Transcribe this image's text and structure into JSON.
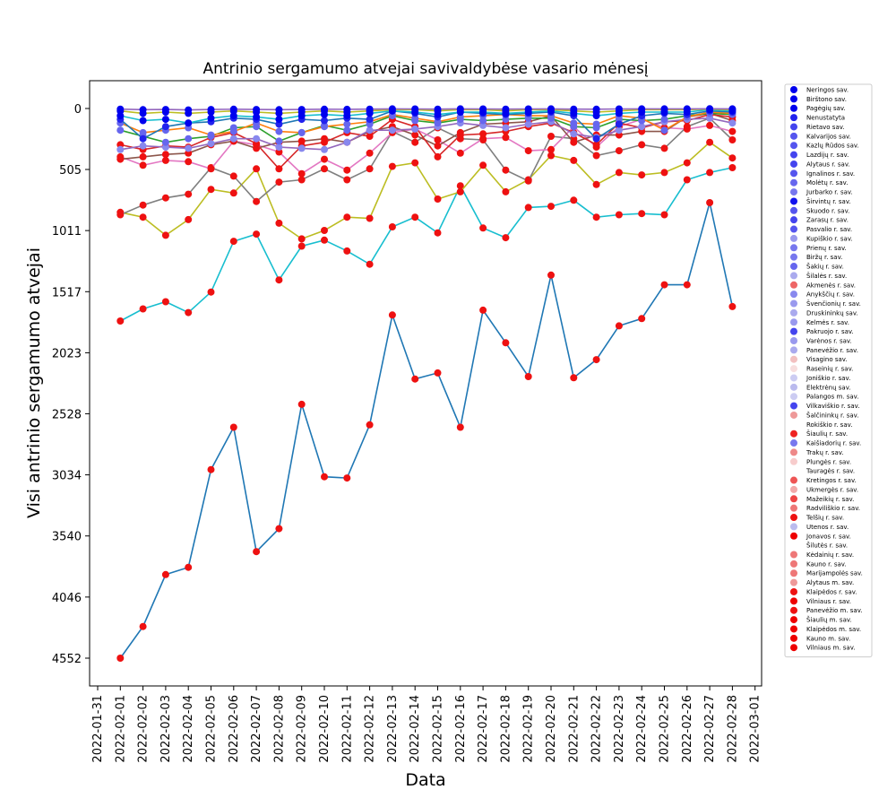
{
  "chart_data": {
    "type": "line",
    "title": "Antrinio sergamumo atvejai savivaldybėse vasario mėnesį",
    "xlabel": "Data",
    "ylabel": "Visi antrinio sergamumo atvejai",
    "y_axis_inverted": true,
    "ylim": [
      0,
      4552
    ],
    "y_ticks": [
      0,
      505,
      1011,
      1517,
      2023,
      2528,
      3034,
      3540,
      4046,
      4552
    ],
    "y_tick_labels": [
      "0",
      "505",
      "1011",
      "1517",
      "2023",
      "2528",
      "3034",
      "3540",
      "4046",
      "4552"
    ],
    "x_tick_labels": [
      "2022-01-31",
      "2022-02-01",
      "2022-02-02",
      "2022-02-03",
      "2022-02-04",
      "2022-02-05",
      "2022-02-06",
      "2022-02-07",
      "2022-02-08",
      "2022-02-09",
      "2022-02-10",
      "2022-02-11",
      "2022-02-12",
      "2022-02-13",
      "2022-02-14",
      "2022-02-15",
      "2022-02-16",
      "2022-02-17",
      "2022-02-18",
      "2022-02-19",
      "2022-02-20",
      "2022-02-21",
      "2022-02-22",
      "2022-02-23",
      "2022-02-24",
      "2022-02-25",
      "2022-02-26",
      "2022-02-27",
      "2022-02-28",
      "2022-03-01"
    ],
    "x_dates": [
      "2022-02-01",
      "2022-02-02",
      "2022-02-03",
      "2022-02-04",
      "2022-02-05",
      "2022-02-06",
      "2022-02-07",
      "2022-02-08",
      "2022-02-09",
      "2022-02-10",
      "2022-02-11",
      "2022-02-12",
      "2022-02-13",
      "2022-02-14",
      "2022-02-15",
      "2022-02-16",
      "2022-02-17",
      "2022-02-18",
      "2022-02-19",
      "2022-02-20",
      "2022-02-21",
      "2022-02-22",
      "2022-02-23",
      "2022-02-24",
      "2022-02-25",
      "2022-02-26",
      "2022-02-27",
      "2022-02-28"
    ],
    "legend_position": "right, outside plot",
    "legend": [
      {
        "name": "Neringos sav.",
        "color": "#0000ee"
      },
      {
        "name": "Birštono sav.",
        "color": "#0000ee"
      },
      {
        "name": "Pagėgių sav.",
        "color": "#0000ee"
      },
      {
        "name": "Nenustatyta",
        "color": "#2222ee"
      },
      {
        "name": "Rietavo sav.",
        "color": "#4444ee"
      },
      {
        "name": "Kalvarijos sav.",
        "color": "#5555ee"
      },
      {
        "name": "Kazlų Rūdos sav.",
        "color": "#5555ee"
      },
      {
        "name": "Lazdijų r. sav.",
        "color": "#4444ee"
      },
      {
        "name": "Alytaus r. sav.",
        "color": "#4444ee"
      },
      {
        "name": "Ignalinos r. sav.",
        "color": "#5555ee"
      },
      {
        "name": "Molėtų r. sav.",
        "color": "#6666ee"
      },
      {
        "name": "Jurbarko r. sav.",
        "color": "#7777ee"
      },
      {
        "name": "Širvintų r. sav.",
        "color": "#1111ee"
      },
      {
        "name": "Skuodo r. sav.",
        "color": "#5555ee"
      },
      {
        "name": "Zarasų r. sav.",
        "color": "#4444ee"
      },
      {
        "name": "Pasvalio r. sav.",
        "color": "#5555ee"
      },
      {
        "name": "Kupiškio r. sav.",
        "color": "#9999ee"
      },
      {
        "name": "Prienų r. sav.",
        "color": "#7777ee"
      },
      {
        "name": "Biržų r. sav.",
        "color": "#7777ee"
      },
      {
        "name": "Šakių r. sav.",
        "color": "#6666ee"
      },
      {
        "name": "Šilalės r. sav.",
        "color": "#aaaaee"
      },
      {
        "name": "Akmenės r. sav.",
        "color": "#ee6666"
      },
      {
        "name": "Anykščių r. sav.",
        "color": "#8888ee"
      },
      {
        "name": "Švenčionių r. sav.",
        "color": "#9999ee"
      },
      {
        "name": "Druskininkų sav.",
        "color": "#aaaaee"
      },
      {
        "name": "Kelmės r. sav.",
        "color": "#9999ee"
      },
      {
        "name": "Pakruojo r. sav.",
        "color": "#4444ee"
      },
      {
        "name": "Varėnos r. sav.",
        "color": "#9999ee"
      },
      {
        "name": "Panevėžio r. sav.",
        "color": "#aaaaee"
      },
      {
        "name": "Visagino sav.",
        "color": "#f2c0c0"
      },
      {
        "name": "Raseinių r. sav.",
        "color": "#f7dede"
      },
      {
        "name": "Joniškio r. sav.",
        "color": "#ccccf2"
      },
      {
        "name": "Elektrėnų sav.",
        "color": "#bbbbee"
      },
      {
        "name": "Palangos m. sav.",
        "color": "#ccccf2"
      },
      {
        "name": "Vilkaviškio r. sav.",
        "color": "#4444ee"
      },
      {
        "name": "Šalčininkų r. sav.",
        "color": "#ee9999"
      },
      {
        "name": "Rokiškio r. sav.",
        "color": "#ffffff"
      },
      {
        "name": "Šiaulių r. sav.",
        "color": "#ee2222"
      },
      {
        "name": "Kaišiadorių r. sav.",
        "color": "#7777ee"
      },
      {
        "name": "Trakų r. sav.",
        "color": "#ee8888"
      },
      {
        "name": "Plungės r. sav.",
        "color": "#f7cccc"
      },
      {
        "name": "Tauragės r. sav.",
        "color": "#ffffff"
      },
      {
        "name": "Kretingos r. sav.",
        "color": "#ee5555"
      },
      {
        "name": "Ukmergės r. sav.",
        "color": "#f2aaaa"
      },
      {
        "name": "Mažeikių r. sav.",
        "color": "#ee4444"
      },
      {
        "name": "Radviliškio r. sav.",
        "color": "#ee7777"
      },
      {
        "name": "Telšių r. sav.",
        "color": "#ee1111"
      },
      {
        "name": "Utenos r. sav.",
        "color": "#bbbbee"
      },
      {
        "name": "Jonavos r. sav.",
        "color": "#ee0000"
      },
      {
        "name": "Šilutės r. sav.",
        "color": "#ffffff"
      },
      {
        "name": "Kėdainių r. sav.",
        "color": "#ee7777"
      },
      {
        "name": "Kauno r. sav.",
        "color": "#ee7777"
      },
      {
        "name": "Marijampolės sav.",
        "color": "#ee7777"
      },
      {
        "name": "Alytaus m. sav.",
        "color": "#ee9999"
      },
      {
        "name": "Klaipėdos r. sav.",
        "color": "#ee1111"
      },
      {
        "name": "Vilniaus r. sav.",
        "color": "#ee0000"
      },
      {
        "name": "Panevėžio m. sav.",
        "color": "#ee1111"
      },
      {
        "name": "Šiaulių m. sav.",
        "color": "#ee0000"
      },
      {
        "name": "Klaipėdos m. sav.",
        "color": "#ee0000"
      },
      {
        "name": "Kauno m. sav.",
        "color": "#ee0000"
      },
      {
        "name": "Vilniaus m. sav.",
        "color": "#ee0000"
      }
    ],
    "series": [
      {
        "color": "#1f77b4",
        "marker": "#ee1111",
        "values": [
          4552,
          4290,
          3860,
          3800,
          2990,
          2640,
          3670,
          3480,
          2450,
          3050,
          3060,
          2620,
          1710,
          2240,
          2190,
          2640,
          1670,
          1940,
          2220,
          1380,
          2230,
          2080,
          1800,
          1740,
          1460,
          1460,
          780,
          1640
        ]
      },
      {
        "color": "#17becf",
        "marker": "#ee1111",
        "values": [
          1760,
          1660,
          1600,
          1690,
          1520,
          1100,
          1040,
          1420,
          1140,
          1090,
          1180,
          1290,
          980,
          900,
          1030,
          640,
          990,
          1070,
          820,
          810,
          760,
          900,
          880,
          870,
          880,
          590,
          530,
          490
        ]
      },
      {
        "color": "#bcbd22",
        "marker": "#ee1111",
        "values": [
          860,
          900,
          1050,
          920,
          670,
          700,
          500,
          950,
          1080,
          1010,
          900,
          910,
          480,
          450,
          750,
          690,
          470,
          690,
          590,
          390,
          430,
          630,
          530,
          550,
          530,
          450,
          280,
          410
        ]
      },
      {
        "color": "#7f7f7f",
        "marker": "#ee1111",
        "values": [
          880,
          800,
          740,
          710,
          490,
          560,
          770,
          610,
          590,
          500,
          590,
          500,
          190,
          280,
          160,
          250,
          260,
          510,
          600,
          230,
          250,
          390,
          350,
          300,
          330,
          150,
          80,
          260
        ]
      },
      {
        "color": "#e377c2",
        "marker": "#ee1111",
        "values": [
          400,
          470,
          430,
          440,
          500,
          270,
          300,
          360,
          540,
          420,
          510,
          370,
          200,
          170,
          260,
          370,
          250,
          240,
          350,
          340,
          150,
          320,
          150,
          90,
          160,
          170,
          140,
          190
        ]
      },
      {
        "color": "#8c564b",
        "marker": "#ee1111",
        "values": [
          420,
          400,
          380,
          370,
          300,
          270,
          330,
          280,
          270,
          250,
          280,
          190,
          150,
          220,
          310,
          200,
          130,
          120,
          110,
          60,
          280,
          220,
          220,
          190,
          190,
          70,
          40,
          100
        ]
      },
      {
        "color": "#d62728",
        "marker": "#ee1111",
        "values": [
          300,
          340,
          310,
          320,
          240,
          200,
          290,
          500,
          310,
          280,
          200,
          230,
          90,
          150,
          400,
          220,
          210,
          190,
          150,
          120,
          200,
          300,
          120,
          160,
          110,
          100,
          50,
          70
        ]
      },
      {
        "color": "#9467bd",
        "marker": "#8888ee",
        "values": [
          340,
          310,
          320,
          330,
          290,
          250,
          250,
          320,
          330,
          340,
          280,
          180,
          180,
          170,
          150,
          120,
          140,
          160,
          130,
          110,
          210,
          240,
          180,
          150,
          110,
          90,
          80,
          120
        ]
      },
      {
        "color": "#2ca02c",
        "marker": "#6666ee",
        "values": [
          180,
          230,
          280,
          250,
          230,
          160,
          150,
          270,
          200,
          140,
          180,
          130,
          60,
          100,
          120,
          90,
          100,
          90,
          80,
          80,
          150,
          160,
          90,
          100,
          90,
          60,
          40,
          50
        ]
      },
      {
        "color": "#ff7f0e",
        "marker": "#6666ee",
        "values": [
          120,
          200,
          180,
          160,
          220,
          190,
          120,
          190,
          200,
          150,
          130,
          110,
          50,
          80,
          110,
          70,
          60,
          50,
          60,
          60,
          120,
          130,
          60,
          80,
          180,
          70,
          30,
          40
        ]
      },
      {
        "color": "#1f77b4",
        "marker": "#2222ee",
        "values": [
          90,
          250,
          150,
          120,
          110,
          80,
          90,
          130,
          90,
          100,
          80,
          90,
          20,
          40,
          70,
          30,
          40,
          50,
          40,
          30,
          60,
          250,
          130,
          60,
          40,
          50,
          20,
          30
        ]
      },
      {
        "color": "#17becf",
        "marker": "#0000ee",
        "values": [
          60,
          100,
          90,
          120,
          80,
          60,
          70,
          90,
          60,
          50,
          60,
          40,
          20,
          30,
          50,
          30,
          30,
          40,
          30,
          20,
          40,
          60,
          40,
          30,
          30,
          30,
          10,
          20
        ]
      },
      {
        "color": "#bcbd22",
        "marker": "#0000ee",
        "values": [
          20,
          40,
          30,
          40,
          30,
          20,
          30,
          40,
          30,
          20,
          30,
          20,
          10,
          10,
          20,
          10,
          10,
          20,
          10,
          10,
          20,
          30,
          20,
          10,
          10,
          10,
          5,
          10
        ]
      },
      {
        "color": "#9467bd",
        "marker": "#0000ee",
        "values": [
          5,
          10,
          8,
          12,
          8,
          6,
          8,
          10,
          8,
          6,
          7,
          5,
          3,
          4,
          5,
          3,
          4,
          5,
          4,
          3,
          5,
          6,
          4,
          3,
          3,
          3,
          2,
          3
        ]
      }
    ]
  }
}
